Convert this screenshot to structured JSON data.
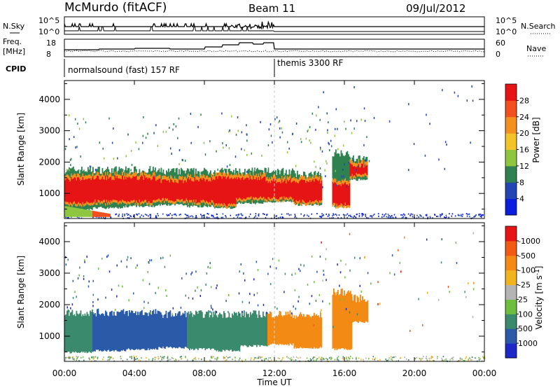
{
  "header": {
    "station": "McMurdo (fitACF)",
    "beam": "Beam 11",
    "date": "09/Jul/2012"
  },
  "top_panels": {
    "nsky": {
      "left_label": "N.Sky",
      "right_label": "N.Search",
      "ticks_left": [
        "10^5",
        "10^0"
      ],
      "ticks_right": [
        "10^5",
        "10^0"
      ]
    },
    "freq": {
      "left_label_1": "Freq.",
      "left_label_2": "[MHz]",
      "right_label": "Nave",
      "ticks_left": [
        "18",
        "8"
      ],
      "ticks_right": [
        "60",
        "0"
      ]
    },
    "cpid": {
      "label": "CPID",
      "modes": [
        {
          "name": "normalsound (fast) 157 RF",
          "start_hour": 0
        },
        {
          "name": "themis 3300 RF",
          "start_hour": 12
        }
      ]
    }
  },
  "chart_data": [
    {
      "type": "heatmap",
      "name": "power",
      "ylabel": "Slant Range [km]",
      "ylim": [
        200,
        4600
      ],
      "yticks": [
        1000,
        2000,
        3000,
        4000
      ],
      "xlim": [
        0,
        24
      ],
      "xticks": [
        0,
        4,
        8,
        12,
        16,
        20,
        24
      ],
      "colorbar": {
        "label": "Power [dB]",
        "tick_labels": [
          "4",
          "8",
          "12",
          "16",
          "20",
          "24",
          "28"
        ],
        "colors": [
          "#0a1ee0",
          "#2346b4",
          "#2f8250",
          "#8ec640",
          "#f2c42a",
          "#f4901e",
          "#f2501e",
          "#e61414"
        ]
      },
      "echo_segments": [
        {
          "x0": 0.0,
          "x1": 1.6,
          "y0": 450,
          "y1": 1750,
          "core0": 700,
          "core1": 1450
        },
        {
          "x0": 1.6,
          "x1": 3.3,
          "y0": 500,
          "y1": 1750,
          "core0": 750,
          "core1": 1500
        },
        {
          "x0": 3.3,
          "x1": 5.2,
          "y0": 550,
          "y1": 1750,
          "core0": 750,
          "core1": 1500
        },
        {
          "x0": 5.2,
          "x1": 7.0,
          "y0": 600,
          "y1": 1700,
          "core0": 800,
          "core1": 1400
        },
        {
          "x0": 7.0,
          "x1": 8.5,
          "y0": 550,
          "y1": 1700,
          "core0": 750,
          "core1": 1450
        },
        {
          "x0": 8.5,
          "x1": 9.8,
          "y0": 500,
          "y1": 1700,
          "core0": 650,
          "core1": 1500
        },
        {
          "x0": 9.8,
          "x1": 11.5,
          "y0": 650,
          "y1": 1700,
          "core0": 850,
          "core1": 1500
        },
        {
          "x0": 11.5,
          "x1": 13.1,
          "y0": 700,
          "y1": 1700,
          "core0": 850,
          "core1": 1400
        },
        {
          "x0": 13.1,
          "x1": 14.7,
          "y0": 600,
          "y1": 1600,
          "core0": 750,
          "core1": 1400
        },
        {
          "x0": 15.3,
          "x1": 16.3,
          "y0": 550,
          "y1": 2300,
          "core0": 650,
          "core1": 1300
        },
        {
          "x0": 16.3,
          "x1": 17.3,
          "y0": 1400,
          "y1": 2100,
          "core0": 1600,
          "core1": 1900
        }
      ],
      "low_echoes": {
        "x0": 0.0,
        "x1": 2.6,
        "y0": 250,
        "y1": 600
      }
    },
    {
      "type": "heatmap",
      "name": "velocity",
      "ylabel": "Slant Range [km]",
      "xlabel": "Time UT",
      "ylim": [
        200,
        4600
      ],
      "yticks": [
        1000,
        2000,
        3000,
        4000
      ],
      "xlim": [
        0,
        24
      ],
      "xticks": [
        0,
        4,
        8,
        12,
        16,
        20,
        24
      ],
      "xtick_labels": [
        "00:00",
        "04:00",
        "08:00",
        "12:00",
        "16:00",
        "20:00",
        "00:00"
      ],
      "colorbar": {
        "label": "Velocity [m s^-1]",
        "tick_labels": [
          "1000",
          "500",
          "100",
          "25",
          "-25",
          "-100",
          "-500",
          "-1000"
        ],
        "colors": [
          "#1e28c8",
          "#2a5aa8",
          "#3a8a6e",
          "#6cbe3c",
          "#b4b4b4",
          "#f2b41e",
          "#f28a14",
          "#f25a14",
          "#e61414"
        ]
      },
      "echo_segments": [
        {
          "x0": 0.0,
          "x1": 1.6,
          "y0": 450,
          "y1": 1750,
          "color": "#3a8a6e"
        },
        {
          "x0": 1.6,
          "x1": 3.5,
          "y0": 500,
          "y1": 1750,
          "color": "#2a5aa8"
        },
        {
          "x0": 3.5,
          "x1": 5.3,
          "y0": 550,
          "y1": 1750,
          "color": "#2a5aa8"
        },
        {
          "x0": 5.3,
          "x1": 7.0,
          "y0": 600,
          "y1": 1700,
          "color": "#2a5aa8"
        },
        {
          "x0": 7.0,
          "x1": 8.6,
          "y0": 550,
          "y1": 1700,
          "color": "#3a8a6e"
        },
        {
          "x0": 8.6,
          "x1": 10.0,
          "y0": 500,
          "y1": 1700,
          "color": "#3a8a6e"
        },
        {
          "x0": 10.0,
          "x1": 11.6,
          "y0": 650,
          "y1": 1700,
          "color": "#3a8a6e"
        },
        {
          "x0": 11.6,
          "x1": 13.1,
          "y0": 700,
          "y1": 1700,
          "color": "#f28a14"
        },
        {
          "x0": 13.1,
          "x1": 14.7,
          "y0": 600,
          "y1": 1650,
          "color": "#f28a14"
        },
        {
          "x0": 15.3,
          "x1": 16.4,
          "y0": 550,
          "y1": 2400,
          "color": "#f28a14"
        },
        {
          "x0": 16.4,
          "x1": 17.3,
          "y0": 1400,
          "y1": 2200,
          "color": "#f28a14"
        }
      ]
    }
  ]
}
